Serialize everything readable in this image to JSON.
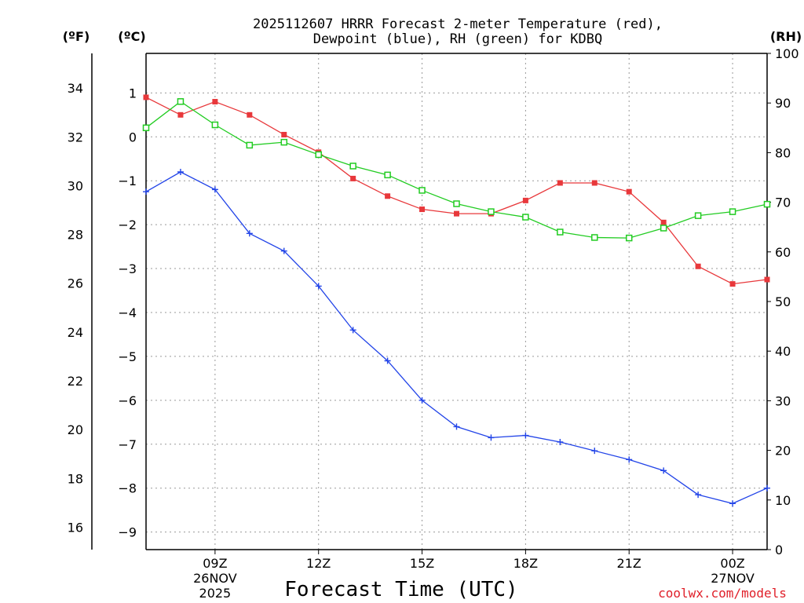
{
  "chart_data": {
    "type": "line",
    "title_line1": "2025112607 HRRR Forecast 2-meter Temperature (red),",
    "title_line2": "Dewpoint (blue), RH (green) for KDBQ",
    "xlabel": "Forecast Time (UTC)",
    "credit": "coolwx.com/models",
    "unit_f": "(ºF)",
    "unit_c": "(ºC)",
    "unit_rh": "(RH)",
    "x": [
      7,
      8,
      9,
      10,
      11,
      12,
      13,
      14,
      15,
      16,
      17,
      18,
      19,
      20,
      21,
      22,
      23,
      24,
      25
    ],
    "xlim": [
      7,
      25
    ],
    "x_ticks": [
      {
        "x": 9,
        "line1": "09Z",
        "line2": "26NOV",
        "line3": "2025"
      },
      {
        "x": 12,
        "line1": "12Z",
        "line2": "",
        "line3": ""
      },
      {
        "x": 15,
        "line1": "15Z",
        "line2": "",
        "line3": ""
      },
      {
        "x": 18,
        "line1": "18Z",
        "line2": "",
        "line3": ""
      },
      {
        "x": 21,
        "line1": "21Z",
        "line2": "",
        "line3": ""
      },
      {
        "x": 24,
        "line1": "00Z",
        "line2": "27NOV",
        "line3": ""
      }
    ],
    "ylim_c": [
      -9.4,
      1.9
    ],
    "ylim_rh": [
      0,
      100
    ],
    "y_ticks_c": [
      "1",
      "0",
      "−1",
      "−2",
      "−3",
      "−4",
      "−5",
      "−6",
      "−7",
      "−8",
      "−9"
    ],
    "y_ticks_f": [
      "34",
      "32",
      "30",
      "28",
      "26",
      "24",
      "22",
      "20",
      "18",
      "16"
    ],
    "y_ticks_rh": [
      "100",
      "90",
      "80",
      "70",
      "60",
      "50",
      "40",
      "30",
      "20",
      "10",
      "0"
    ],
    "series": [
      {
        "name": "Temperature (°C)",
        "axis": "c",
        "color": "#e8383b",
        "marker": "filled-square",
        "values": [
          0.9,
          0.5,
          0.8,
          0.5,
          0.05,
          -0.35,
          -0.95,
          -1.35,
          -1.65,
          -1.75,
          -1.75,
          -1.45,
          -1.05,
          -1.05,
          -1.25,
          -1.95,
          -2.95,
          -3.35,
          -3.25
        ]
      },
      {
        "name": "Dewpoint (°C)",
        "axis": "c",
        "color": "#2244e8",
        "marker": "plus",
        "values": [
          -1.25,
          -0.8,
          -1.2,
          -2.2,
          -2.6,
          -3.4,
          -4.4,
          -5.1,
          -6.0,
          -6.6,
          -6.85,
          -6.8,
          -6.95,
          -7.15,
          -7.35,
          -7.6,
          -8.15,
          -8.35,
          -8.0
        ]
      },
      {
        "name": "RH (%)",
        "axis": "rh",
        "color": "#22cc22",
        "marker": "open-square",
        "values": [
          85.0,
          90.3,
          85.6,
          81.5,
          82.1,
          79.6,
          77.3,
          75.5,
          72.4,
          69.7,
          68.1,
          67.0,
          64.0,
          62.9,
          62.8,
          64.8,
          67.3,
          68.1,
          69.6
        ]
      }
    ]
  }
}
